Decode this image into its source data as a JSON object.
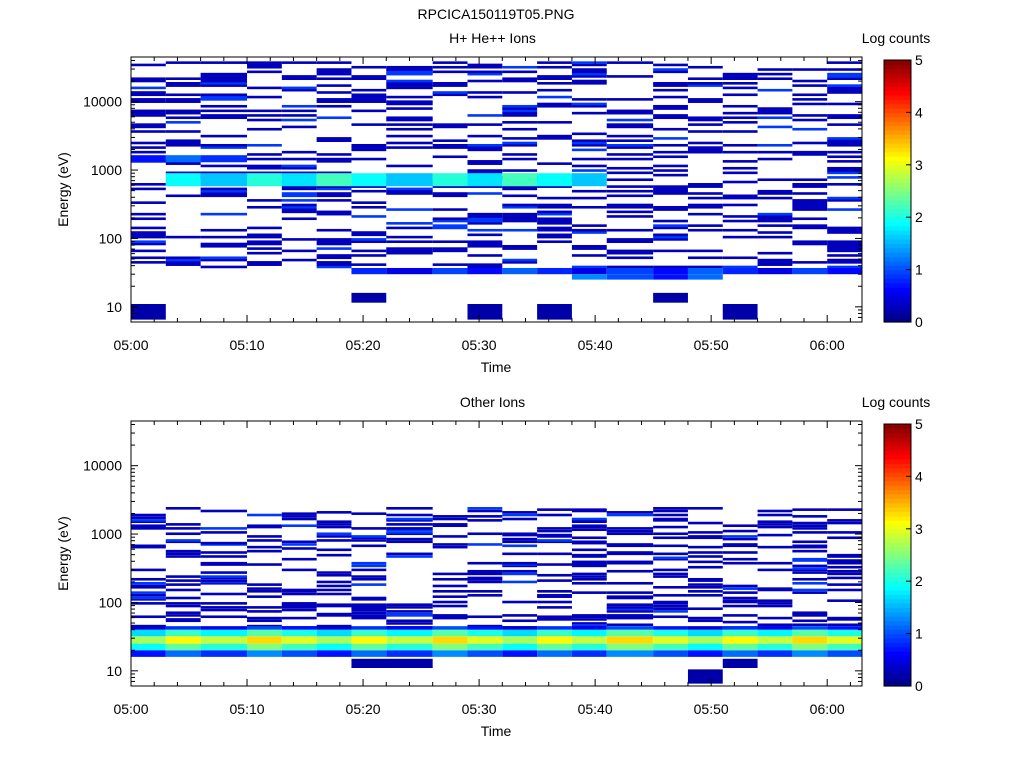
{
  "figure": {
    "title": "RPCICA150119T05.PNG"
  },
  "chart_data": [
    {
      "type": "heatmap",
      "title": "H+ He++ Ions",
      "xlabel": "Time",
      "ylabel": "Energy (eV)",
      "x_ticks": [
        "05:00",
        "05:10",
        "05:20",
        "05:30",
        "05:40",
        "05:50",
        "06:00"
      ],
      "y_ticks": [
        "10",
        "100",
        "1000",
        "10000"
      ],
      "y_scale": "log",
      "ylim": [
        6,
        45000
      ],
      "xlim": [
        "05:00",
        "06:03"
      ],
      "colorbar": {
        "label": "Log counts",
        "ticks": [
          "0",
          "1",
          "2",
          "3",
          "4",
          "5"
        ],
        "range": [
          0,
          5
        ],
        "colormap": "jet"
      },
      "time_bins": [
        "05:00",
        "05:03",
        "05:06",
        "05:10",
        "05:13",
        "05:16",
        "05:19",
        "05:22",
        "05:26",
        "05:29",
        "05:32",
        "05:35",
        "05:38",
        "05:41",
        "05:45",
        "05:48",
        "05:51",
        "05:54",
        "05:57",
        "06:00"
      ],
      "continuous_bands": [
        {
          "energy_min": 580,
          "energy_max": 900,
          "from": "05:03",
          "to": "05:41",
          "level": 1.9
        },
        {
          "energy_min": 1300,
          "energy_max": 1650,
          "from": "05:00",
          "to": "05:10",
          "level": 1.0
        },
        {
          "energy_min": 30,
          "energy_max": 37,
          "from": "05:19",
          "to": "06:03",
          "level": 0.8
        },
        {
          "energy_min": 25,
          "energy_max": 30,
          "from": "05:38",
          "to": "05:51",
          "level": 1.0
        }
      ],
      "isolated_blocks": [
        {
          "energy_min": 6.5,
          "energy_max": 11,
          "from": "05:00",
          "to": "05:03",
          "level": 0.2
        },
        {
          "energy_min": 6.5,
          "energy_max": 11,
          "from": "05:29",
          "to": "05:32",
          "level": 0.2
        },
        {
          "energy_min": 6.5,
          "energy_max": 11,
          "from": "05:35",
          "to": "05:38",
          "level": 0.2
        },
        {
          "energy_min": 6.5,
          "energy_max": 11,
          "from": "05:51",
          "to": "05:54",
          "level": 0.2
        },
        {
          "energy_min": 11.5,
          "energy_max": 16,
          "from": "05:19",
          "to": "05:22",
          "level": 0.2
        },
        {
          "energy_min": 11.5,
          "energy_max": 16,
          "from": "05:45",
          "to": "05:48",
          "level": 0.2
        }
      ],
      "scatter_lines": {
        "energy_range": [
          40,
          42000
        ],
        "density": 0.32,
        "level": 0.3
      }
    },
    {
      "type": "heatmap",
      "title": "Other Ions",
      "xlabel": "Time",
      "ylabel": "Energy (eV)",
      "x_ticks": [
        "05:00",
        "05:10",
        "05:20",
        "05:30",
        "05:40",
        "05:50",
        "06:00"
      ],
      "y_ticks": [
        "10",
        "100",
        "1000",
        "10000"
      ],
      "y_scale": "log",
      "ylim": [
        6,
        45000
      ],
      "xlim": [
        "05:00",
        "06:03"
      ],
      "colorbar": {
        "label": "Log counts",
        "ticks": [
          "0",
          "1",
          "2",
          "3",
          "4",
          "5"
        ],
        "range": [
          0,
          5
        ],
        "colormap": "jet"
      },
      "time_bins": [
        "05:00",
        "05:03",
        "05:06",
        "05:10",
        "05:13",
        "05:16",
        "05:19",
        "05:22",
        "05:26",
        "05:29",
        "05:32",
        "05:35",
        "05:38",
        "05:41",
        "05:45",
        "05:48",
        "05:51",
        "05:54",
        "05:57",
        "06:00"
      ],
      "continuous_bands": [
        {
          "energy_min": 16,
          "energy_max": 20,
          "from": "05:00",
          "to": "06:03",
          "level": 1.0
        },
        {
          "energy_min": 20,
          "energy_max": 25,
          "from": "05:00",
          "to": "06:03",
          "level": 2.2
        },
        {
          "energy_min": 25,
          "energy_max": 32,
          "from": "05:00",
          "to": "06:03",
          "level": 3.0
        },
        {
          "energy_min": 32,
          "energy_max": 40,
          "from": "05:00",
          "to": "06:03",
          "level": 2.0
        },
        {
          "energy_min": 40,
          "energy_max": 45,
          "from": "05:00",
          "to": "06:03",
          "level": 0.7
        }
      ],
      "isolated_blocks": [
        {
          "energy_min": 11,
          "energy_max": 15,
          "from": "05:19",
          "to": "05:26",
          "level": 0.2
        },
        {
          "energy_min": 11,
          "energy_max": 15,
          "from": "05:51",
          "to": "05:54",
          "level": 0.2
        },
        {
          "energy_min": 6.5,
          "energy_max": 10.5,
          "from": "05:48",
          "to": "05:51",
          "level": 0.2
        }
      ],
      "scatter_lines": {
        "energy_range": [
          45,
          2600
        ],
        "density": 0.22,
        "level": 0.3
      }
    }
  ]
}
